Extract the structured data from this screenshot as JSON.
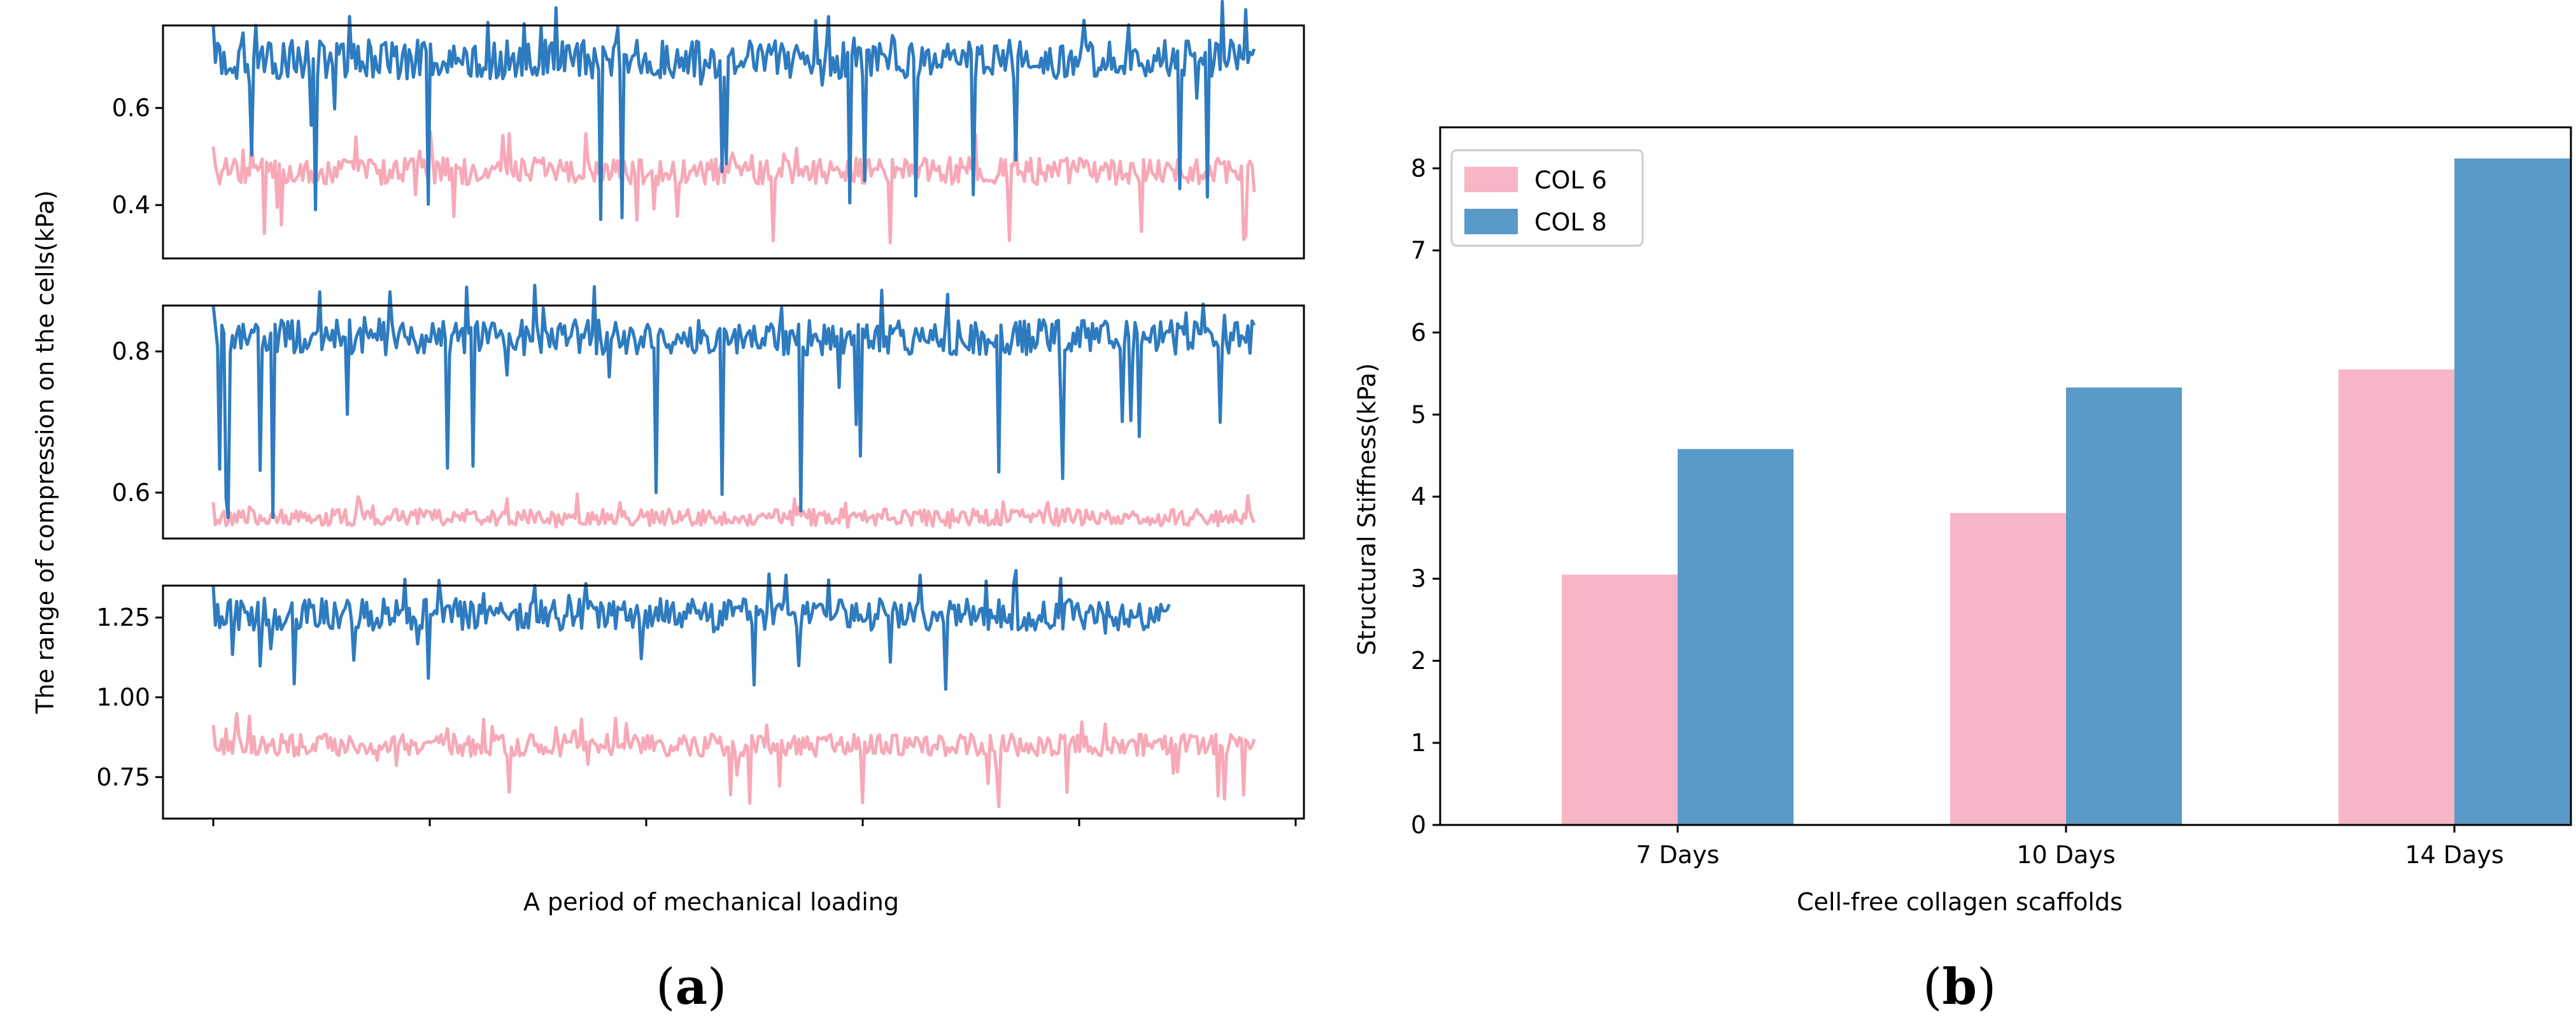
{
  "panels": {
    "a_label_open": "(",
    "a_label_letter": "a",
    "a_label_close": ")",
    "b_label_open": "(",
    "b_label_letter": "b",
    "b_label_close": ")"
  },
  "chart_data": [
    {
      "type": "line",
      "xlabel": "A period of mechanical loading",
      "ylabel": "The range of compression on the cells(kPa)",
      "colors": {
        "pink": "#f7a9b8",
        "blue": "#2e7bbf"
      },
      "subplots": [
        {
          "yticks": [
            "0.4",
            "0.6"
          ],
          "ytick_values": [
            0.4,
            0.6
          ],
          "ylim": [
            0.29,
            0.77
          ],
          "series": [
            {
              "color": "pink",
              "baseline": 0.47,
              "spread": 0.028,
              "dip_min": 0.31,
              "points": 490
            },
            {
              "color": "blue",
              "baseline": 0.7,
              "spread": 0.04,
              "dip_min": 0.37,
              "points": 490
            }
          ]
        },
        {
          "yticks": [
            "0.6",
            "0.8"
          ],
          "ytick_values": [
            0.6,
            0.8
          ],
          "ylim": [
            0.535,
            0.865
          ],
          "series": [
            {
              "color": "pink",
              "baseline": 0.565,
              "spread": 0.012,
              "dip_min": 0.55,
              "points": 490
            },
            {
              "color": "blue",
              "baseline": 0.82,
              "spread": 0.025,
              "dip_min": 0.56,
              "points": 490
            }
          ]
        },
        {
          "yticks": [
            "0.75",
            "1.00",
            "1.25"
          ],
          "ytick_values": [
            0.75,
            1.0,
            1.25
          ],
          "ylim": [
            0.62,
            1.35
          ],
          "series": [
            {
              "color": "pink",
              "baseline": 0.85,
              "spread": 0.035,
              "dip_min": 0.64,
              "points": 490
            },
            {
              "color": "blue",
              "baseline": 1.26,
              "spread": 0.05,
              "dip_min": 1.02,
              "points": 450
            }
          ]
        }
      ]
    },
    {
      "type": "bar",
      "categories": [
        "7 Days",
        "10 Days",
        "14 Days"
      ],
      "series": [
        {
          "name": "COL 6",
          "values": [
            3.05,
            3.8,
            5.55
          ],
          "color": "#f7b6c5"
        },
        {
          "name": "COL 8",
          "values": [
            4.58,
            5.33,
            8.12
          ],
          "color": "#5a9ac9"
        }
      ],
      "xlabel": "Cell-free collagen scaffolds",
      "ylabel": "Structural Stiffness(kPa)",
      "ylim": [
        0,
        8.5
      ],
      "yticks": [
        "0",
        "1",
        "2",
        "3",
        "4",
        "5",
        "6",
        "7",
        "8"
      ],
      "legend_position": "top-left"
    }
  ]
}
